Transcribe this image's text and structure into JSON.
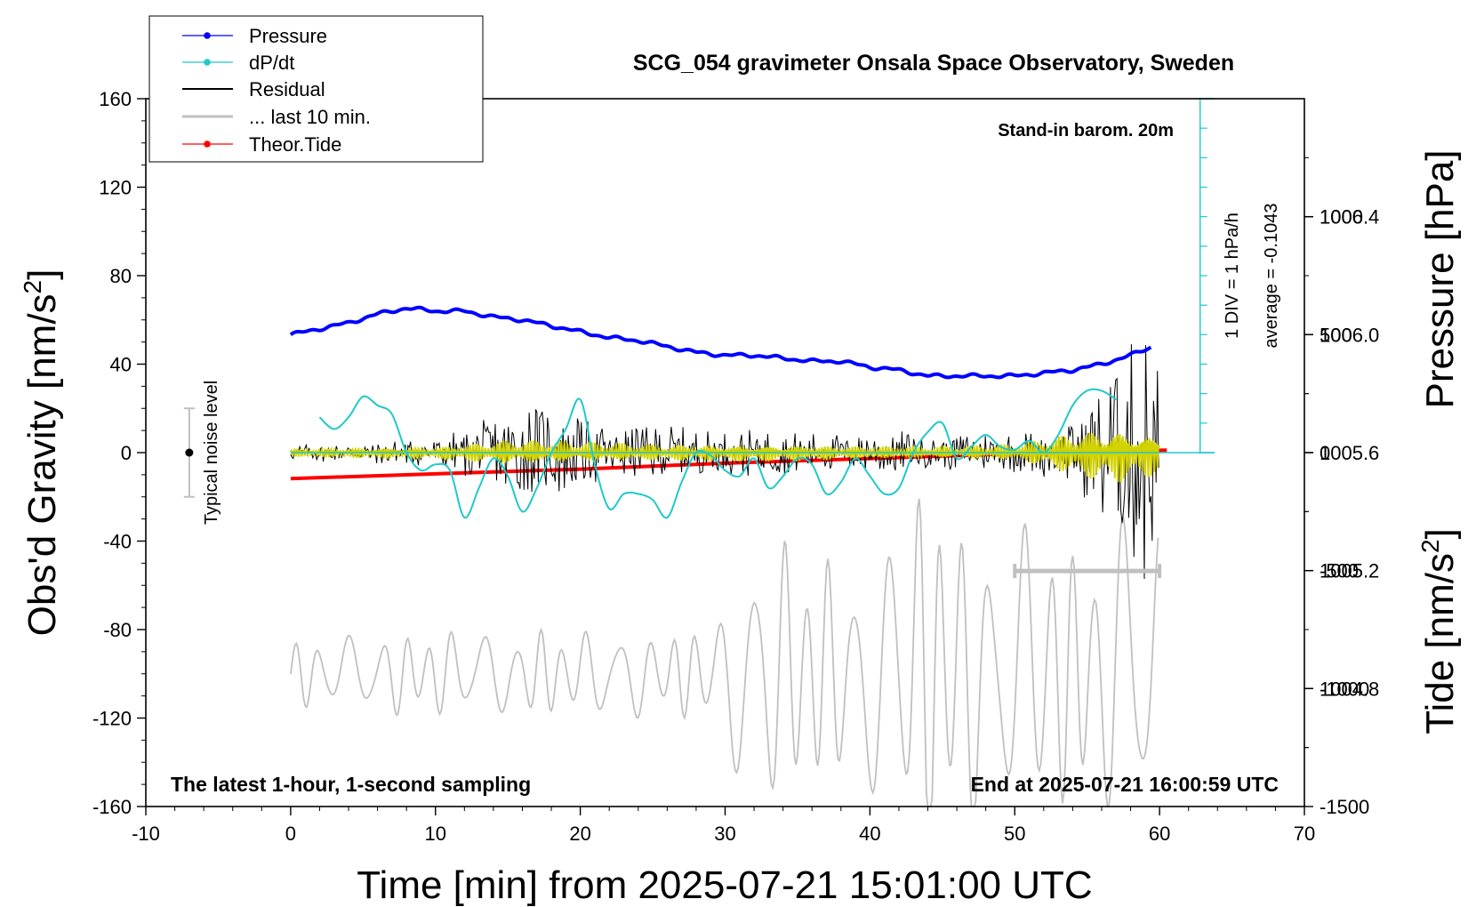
{
  "chart_data": {
    "type": "line",
    "title": "SCG_054 gravimeter Onsala Space Observatory, Sweden",
    "xlabel": "Time [min] from 2025-07-21 15:01:00 UTC",
    "ylabel_left": "Obs'd Gravity [nm/s",
    "ylabel_left_sup": "2",
    "ylabel_left_end": "]",
    "ylabel_pressure": "Pressure [hPa]",
    "ylabel_tide": "Tide [nm/s",
    "ylabel_tide_sup": "2",
    "ylabel_tide_end": "]",
    "xlim": [
      -10,
      70
    ],
    "ylim": [
      -160,
      160
    ],
    "pressure_lim": [
      1004.4,
      1006.8
    ],
    "tide_lim": [
      -1500,
      1500
    ],
    "x_ticks": [
      "-10",
      "0",
      "10",
      "20",
      "30",
      "40",
      "50",
      "60",
      "70"
    ],
    "y_ticks": [
      "160",
      "120",
      "80",
      "40",
      "0",
      "-40",
      "-80",
      "-120",
      "-160"
    ],
    "pressure_ticks": [
      "1006.4",
      "1006.0",
      "1005.6",
      "1005.2",
      "1004.8"
    ],
    "tide_ticks": [
      "1000",
      "500",
      "0",
      "-500",
      "-1000",
      "-1500"
    ],
    "annotations": {
      "barometer": "Stand-in barom. 20m",
      "div": "1 DIV = 1 hPa/h",
      "average": "average = -0.1043",
      "noise": "Typical noise level",
      "latest": "The latest 1-hour, 1-second sampling",
      "end": "End at 2025-07-21 16:00:59 UTC"
    },
    "legend": {
      "position": "top-left",
      "entries": [
        "Pressure",
        "dP/dt",
        "Residual",
        "... last 10 min.",
        "Theor.Tide"
      ]
    },
    "colors": {
      "pressure": "#0000ff",
      "dpdt": "#20c8c8",
      "residual": "#000000",
      "last10": "#d2d200",
      "zoomed": "#c0c0c0",
      "tide": "#ff0000",
      "noise_bar": "#c0c0c0"
    },
    "series": [
      {
        "name": "Pressure",
        "unit": "hPa",
        "x": [
          0,
          2,
          4,
          6,
          8,
          10,
          12,
          14,
          16,
          18,
          20,
          22,
          24,
          26,
          28,
          30,
          32,
          34,
          36,
          38,
          40,
          42,
          44,
          46,
          48,
          50,
          52,
          54,
          56,
          58,
          59.5
        ],
        "values": [
          1006.0,
          1006.02,
          1006.04,
          1006.07,
          1006.09,
          1006.08,
          1006.08,
          1006.06,
          1006.05,
          1006.03,
          1006.01,
          1005.99,
          1005.98,
          1005.96,
          1005.94,
          1005.93,
          1005.93,
          1005.92,
          1005.91,
          1005.91,
          1005.89,
          1005.88,
          1005.86,
          1005.86,
          1005.86,
          1005.86,
          1005.87,
          1005.88,
          1005.9,
          1005.93,
          1005.96
        ]
      },
      {
        "name": "dP/dt",
        "unit": "hPa/h",
        "zero_line_pressure": 1005.6,
        "x": [
          2,
          3,
          4,
          5,
          6,
          7,
          8,
          9,
          10,
          11,
          12,
          13,
          14,
          15,
          16,
          17,
          18,
          19,
          20,
          21,
          22,
          23,
          24,
          25,
          26,
          27,
          28,
          29,
          30,
          31,
          32,
          33,
          34,
          35,
          36,
          37,
          38,
          39,
          40,
          41,
          42,
          43,
          44,
          45,
          46,
          47,
          48,
          49,
          50,
          51,
          52,
          53,
          54,
          55,
          56,
          57
        ],
        "values": [
          0.6,
          0.4,
          0.6,
          0.95,
          0.8,
          0.65,
          0.0,
          -0.3,
          -0.2,
          -0.3,
          -1.1,
          -0.6,
          -0.1,
          -0.4,
          -1.0,
          -0.6,
          0.0,
          0.4,
          0.9,
          -0.2,
          -0.95,
          -0.7,
          -0.7,
          -0.8,
          -1.1,
          -0.5,
          0.0,
          -0.05,
          -0.3,
          -0.4,
          -0.1,
          -0.6,
          -0.4,
          -0.1,
          -0.2,
          -0.7,
          -0.5,
          -0.1,
          -0.4,
          -0.7,
          -0.6,
          0.0,
          0.35,
          0.5,
          -0.1,
          0.1,
          0.3,
          0.1,
          0.05,
          0.2,
          0.0,
          0.3,
          0.8,
          1.05,
          1.05,
          0.9
        ]
      },
      {
        "name": "Residual",
        "unit": "nm/s2",
        "x": [
          0,
          5,
          10,
          12,
          15,
          17,
          20,
          22,
          25,
          28,
          30,
          33,
          35,
          38,
          41,
          44,
          47,
          50,
          53,
          55,
          57,
          59,
          60
        ],
        "envelope": [
          3,
          4,
          6,
          9,
          18,
          20,
          15,
          10,
          12,
          9,
          8,
          10,
          8,
          7,
          10,
          6,
          8,
          8,
          10,
          20,
          40,
          55,
          40
        ]
      },
      {
        "name": "... last 10 min.",
        "unit": "nm/s2",
        "x": [
          0,
          10,
          15,
          20,
          25,
          30,
          35,
          40,
          45,
          50,
          55,
          57,
          60
        ],
        "envelope": [
          2,
          3,
          6,
          5,
          4,
          4,
          4,
          3,
          3,
          4,
          12,
          14,
          10
        ]
      },
      {
        "name": "Theor.Tide",
        "unit": "nm/s2",
        "x": [
          0,
          10,
          20,
          30,
          40,
          50,
          60.5
        ],
        "values": [
          -110,
          -90,
          -70,
          -45,
          -25,
          -5,
          10
        ]
      }
    ]
  }
}
